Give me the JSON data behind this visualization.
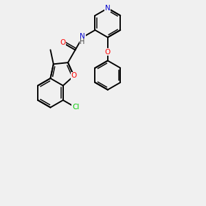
{
  "bg_color": "#f0f0f0",
  "bond_color": "#000000",
  "atom_colors": {
    "O": "#ff0000",
    "N": "#0000cc",
    "Cl": "#00cc00",
    "C": "#000000",
    "H": "#404040"
  },
  "lw": 1.4,
  "lw_inner": 1.1,
  "fs": 7.5
}
